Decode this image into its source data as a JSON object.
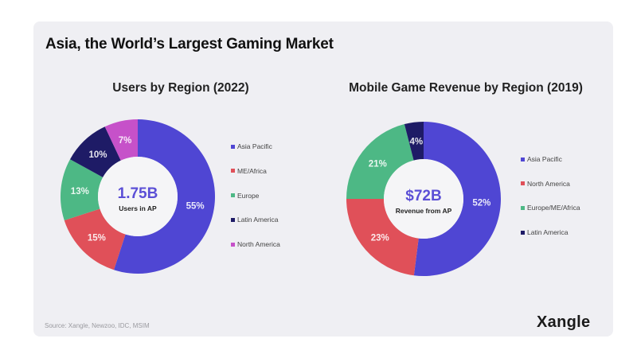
{
  "title": "Asia, the World’s Largest Gaming Market",
  "source": "Source: Xangle, Newzoo, IDC, MSIM",
  "logo": "Xangle",
  "colors": {
    "asia_pacific": "#4F46D3",
    "red": "#E05059",
    "green": "#4DB885",
    "navy": "#1E1B66",
    "magenta": "#C651C9",
    "center_value": "#5B4FD6"
  },
  "chart_data": [
    {
      "type": "pie",
      "variant": "donut",
      "title": "Users by Region (2022)",
      "center_value": "1.75B",
      "center_label": "Users in AP",
      "legend_position": "right",
      "slices": [
        {
          "label": "Asia Pacific",
          "value": 55,
          "display": "55%",
          "color": "#4F46D3"
        },
        {
          "label": "ME/Africa",
          "value": 15,
          "display": "15%",
          "color": "#E05059"
        },
        {
          "label": "Europe",
          "value": 13,
          "display": "13%",
          "color": "#4DB885"
        },
        {
          "label": "Latin America",
          "value": 10,
          "display": "10%",
          "color": "#1E1B66"
        },
        {
          "label": "North America",
          "value": 7,
          "display": "7%",
          "color": "#C651C9"
        }
      ]
    },
    {
      "type": "pie",
      "variant": "donut",
      "title": "Mobile Game Revenue by Region (2019)",
      "center_value": "$72B",
      "center_label": "Revenue from AP",
      "legend_position": "right",
      "slices": [
        {
          "label": "Asia Pacific",
          "value": 52,
          "display": "52%",
          "color": "#4F46D3"
        },
        {
          "label": "North America",
          "value": 23,
          "display": "23%",
          "color": "#E05059"
        },
        {
          "label": "Europe/ME/Africa",
          "value": 21,
          "display": "21%",
          "color": "#4DB885"
        },
        {
          "label": "Latin America",
          "value": 4,
          "display": "4%",
          "color": "#1E1B66"
        }
      ]
    }
  ]
}
